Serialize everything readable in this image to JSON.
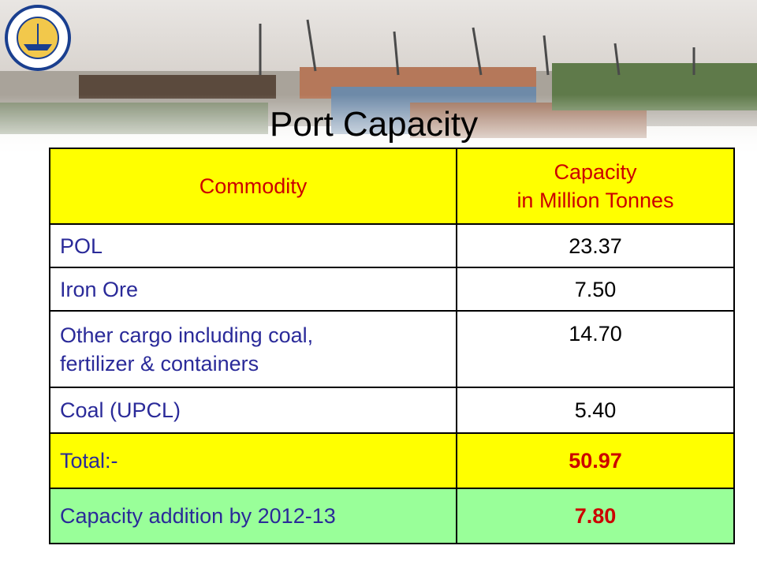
{
  "title": "Port Capacity",
  "table": {
    "header": [
      "Commodity",
      "Capacity\nin Million Tonnes"
    ],
    "rows": [
      [
        "POL",
        "23.37"
      ],
      [
        "Iron Ore",
        "7.50"
      ],
      [
        "Other cargo including coal,\nfertilizer & containers",
        "14.70"
      ],
      [
        "Coal (UPCL)",
        "5.40"
      ],
      [
        "Total:-",
        "50.97"
      ],
      [
        "Capacity addition by 2012-13",
        "7.80"
      ]
    ]
  }
}
